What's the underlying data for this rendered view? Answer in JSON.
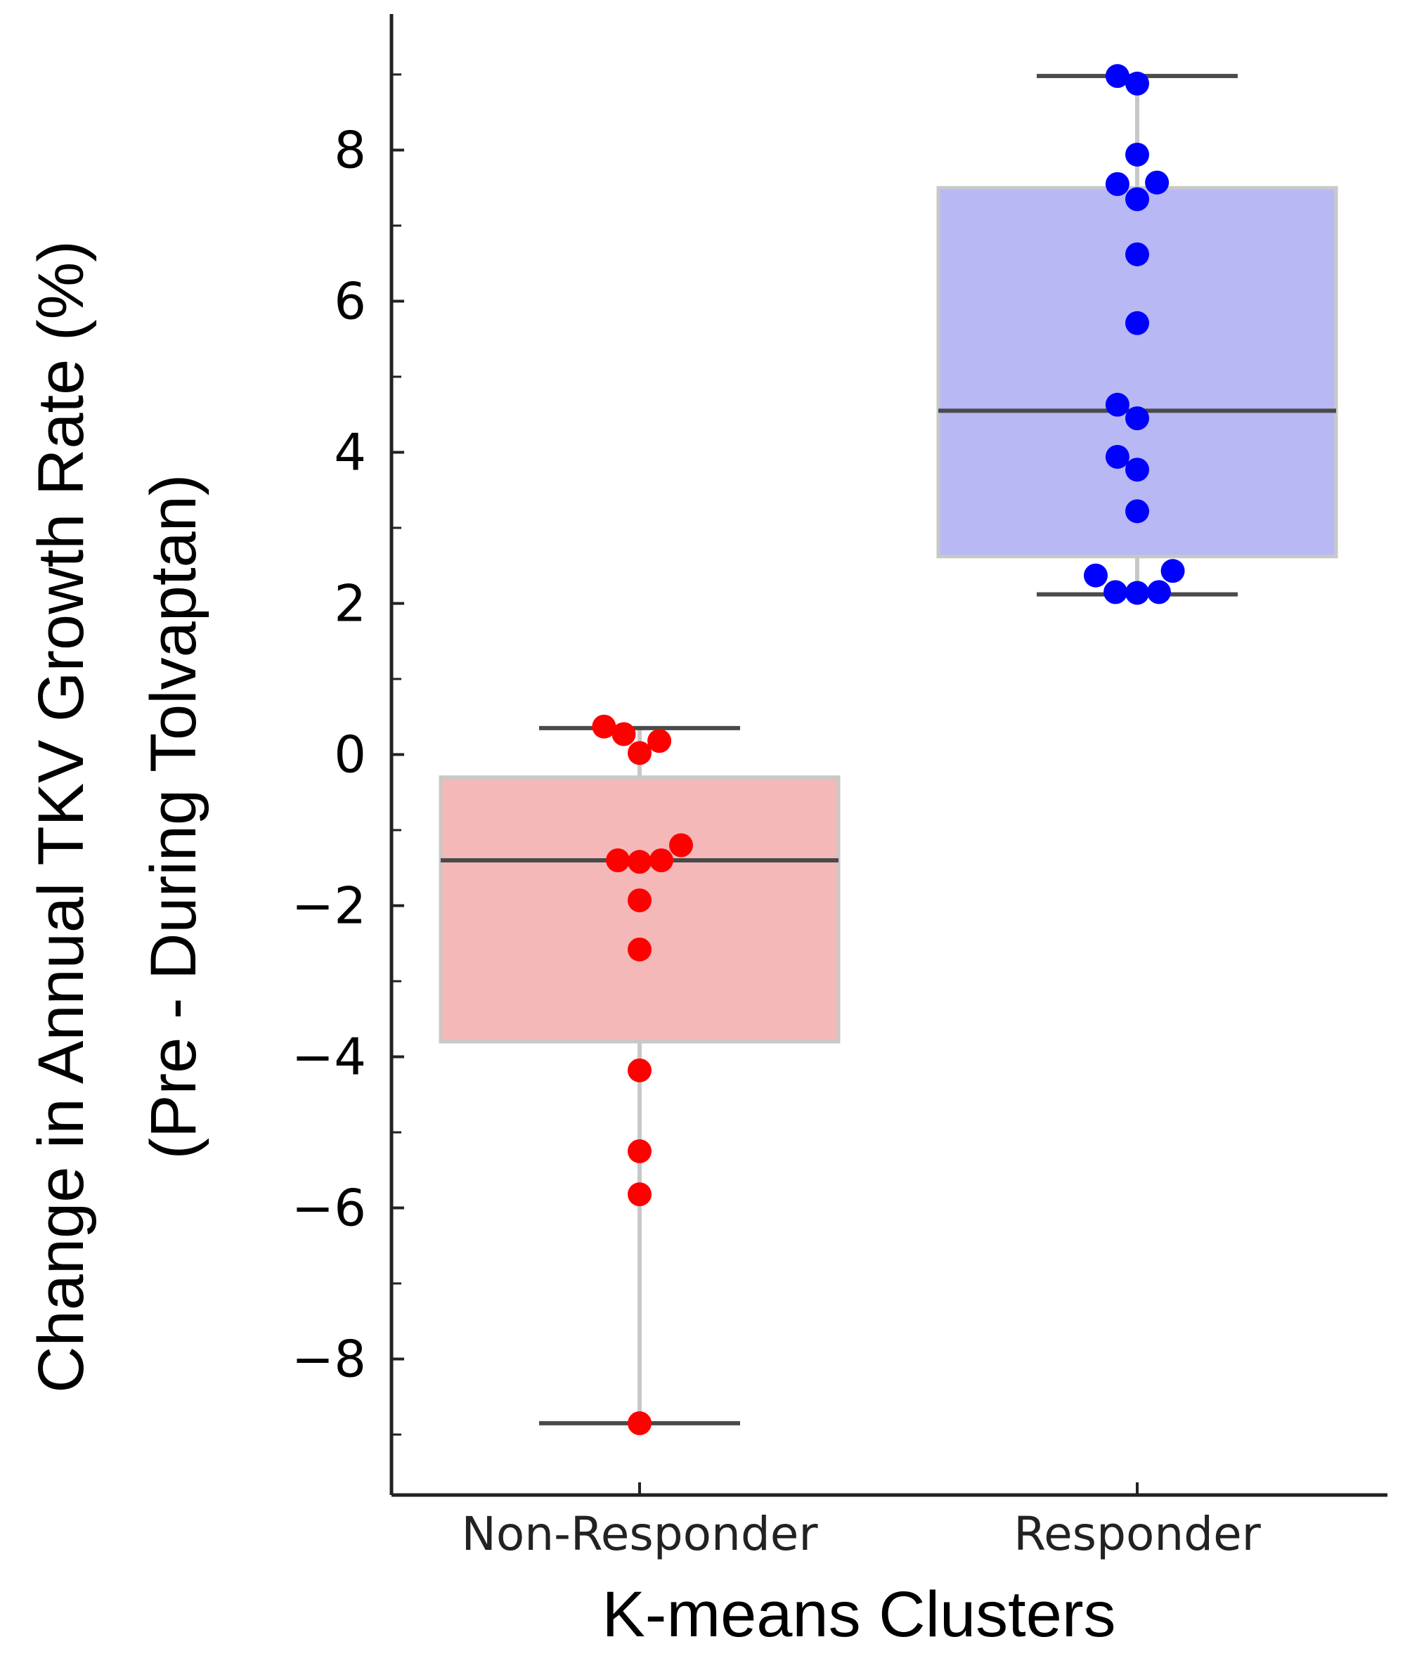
{
  "chart_data": {
    "type": "box",
    "title": "",
    "xlabel": "K-means Clusters",
    "ylabel": [
      "Change in  Annual  TKV Growth Rate (%)",
      "(Pre - During Tolvaptan)"
    ],
    "categories": [
      "Non-Responder",
      "Responder"
    ],
    "ylim": [
      -9.8,
      9.8
    ],
    "yticks": [
      -8,
      -6,
      -4,
      -2,
      0,
      2,
      4,
      6,
      8
    ],
    "ytick_labels": [
      "−8",
      "−6",
      "−4",
      "−2",
      "0",
      "2",
      "4",
      "6",
      "8"
    ],
    "grid": false,
    "boxes": [
      {
        "name": "Non-Responder",
        "whisker_low": -8.85,
        "q1": -3.8,
        "median": -1.4,
        "q3": -0.3,
        "whisker_high": 0.35,
        "fill": "#f4b8b8",
        "point_color": "#ff0000",
        "points": [
          {
            "y": 0.37,
            "offset": -0.18
          },
          {
            "y": 0.27,
            "offset": -0.08
          },
          {
            "y": 0.02,
            "offset": 0.0
          },
          {
            "y": 0.18,
            "offset": 0.1
          },
          {
            "y": -1.2,
            "offset": 0.21
          },
          {
            "y": -1.4,
            "offset": -0.11
          },
          {
            "y": -1.42,
            "offset": 0.0
          },
          {
            "y": -1.4,
            "offset": 0.11
          },
          {
            "y": -1.93,
            "offset": 0.0
          },
          {
            "y": -2.58,
            "offset": 0.0
          },
          {
            "y": -4.18,
            "offset": 0.0
          },
          {
            "y": -5.25,
            "offset": 0.0
          },
          {
            "y": -5.82,
            "offset": 0.0
          },
          {
            "y": -8.85,
            "offset": 0.0
          }
        ]
      },
      {
        "name": "Responder",
        "whisker_low": 2.12,
        "q1": 2.62,
        "median": 4.55,
        "q3": 7.5,
        "whisker_high": 8.98,
        "fill": "#b8b8f4",
        "point_color": "#0000ff",
        "points": [
          {
            "y": 8.98,
            "offset": -0.1
          },
          {
            "y": 8.88,
            "offset": 0.0
          },
          {
            "y": 7.94,
            "offset": 0.0
          },
          {
            "y": 7.55,
            "offset": -0.1
          },
          {
            "y": 7.57,
            "offset": 0.1
          },
          {
            "y": 7.35,
            "offset": 0.0
          },
          {
            "y": 6.62,
            "offset": 0.0
          },
          {
            "y": 5.71,
            "offset": 0.0
          },
          {
            "y": 4.63,
            "offset": -0.1
          },
          {
            "y": 4.45,
            "offset": 0.0
          },
          {
            "y": 3.94,
            "offset": -0.1
          },
          {
            "y": 3.77,
            "offset": 0.0
          },
          {
            "y": 3.22,
            "offset": 0.0
          },
          {
            "y": 2.37,
            "offset": -0.21
          },
          {
            "y": 2.43,
            "offset": 0.18
          },
          {
            "y": 2.15,
            "offset": -0.11
          },
          {
            "y": 2.14,
            "offset": 0.0
          },
          {
            "y": 2.15,
            "offset": 0.11
          }
        ]
      }
    ]
  },
  "colors": {
    "axis": "#222222",
    "whisker_line": "#c8c8c8",
    "cap_line": "#4a4a4a",
    "median_line": "#4a4a4a",
    "box_edge": "#c8c8c8"
  }
}
